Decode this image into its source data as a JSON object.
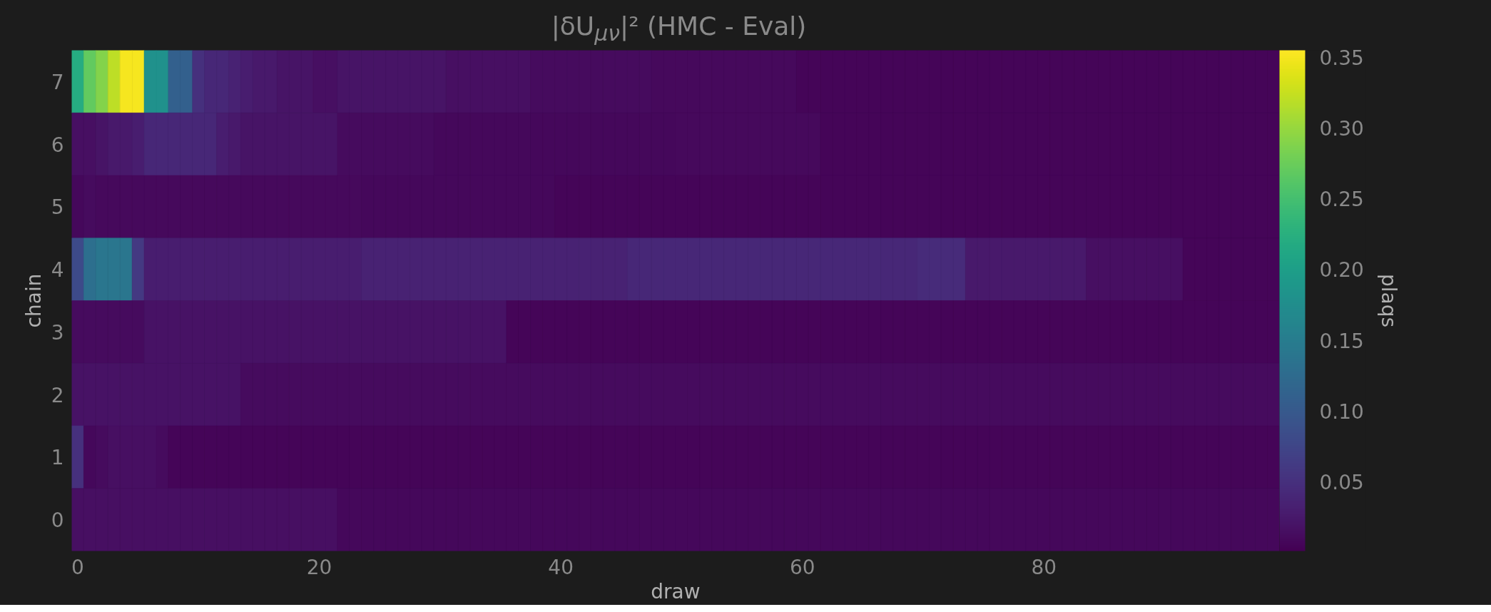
{
  "chart_data": {
    "type": "heatmap",
    "title": "|δU$_{μν}$|² (HMC - Eval)",
    "xlabel": "draw",
    "ylabel": "chain",
    "clabel": "plaqs",
    "categories": [
      "0",
      null,
      null,
      null,
      null,
      null,
      null,
      null,
      null,
      null,
      null,
      null,
      null,
      null,
      null,
      null,
      null,
      null,
      null,
      null,
      "20",
      null,
      null,
      null,
      null,
      null,
      null,
      null,
      null,
      null,
      null,
      null,
      null,
      null,
      null,
      null,
      null,
      null,
      null,
      null,
      "40",
      null,
      null,
      null,
      null,
      null,
      null,
      null,
      null,
      null,
      null,
      null,
      null,
      null,
      null,
      null,
      null,
      null,
      null,
      null,
      "60",
      null,
      null,
      null,
      null,
      null,
      null,
      null,
      null,
      null,
      null,
      null,
      null,
      null,
      null,
      null,
      null,
      null,
      null,
      null,
      "80",
      null,
      null,
      null,
      null,
      null,
      null,
      null,
      null,
      null,
      null,
      null,
      null,
      null,
      null,
      null,
      null,
      null,
      null,
      null
    ],
    "y_categories": [
      "7",
      "6",
      "5",
      "4",
      "3",
      "2",
      "1",
      "0"
    ],
    "cells": [
      [
        0.22,
        0.27,
        0.29,
        0.32,
        0.35,
        0.35,
        0.18,
        0.18,
        0.11,
        0.11,
        0.05,
        0.04,
        0.04,
        0.035,
        0.03,
        0.025,
        0.025,
        0.02,
        0.02,
        0.02,
        0.015,
        0.015,
        0.02,
        0.02,
        0.02,
        0.02,
        0.02,
        0.02,
        0.02,
        0.02,
        0.02,
        0.015,
        0.015,
        0.015,
        0.015,
        0.015,
        0.015,
        0.015,
        0.012,
        0.012,
        0.012,
        0.012,
        0.012,
        0.012,
        0.012,
        0.012,
        0.012,
        0.012,
        0.01,
        0.01,
        0.01,
        0.01,
        0.01,
        0.01,
        0.01,
        0.01,
        0.01,
        0.01,
        0.01,
        0.01,
        0.006,
        0.006,
        0.006,
        0.006,
        0.006,
        0.006,
        0.006,
        0.006,
        0.006,
        0.006,
        0.006,
        0.006,
        0.006,
        0.006,
        0.006,
        0.006,
        0.006,
        0.006,
        0.006,
        0.006,
        0.006,
        0.006,
        0.006,
        0.006,
        0.006,
        0.006,
        0.006,
        0.006,
        0.006,
        0.006,
        0.006,
        0.006,
        0.006,
        0.006,
        0.006,
        0.006,
        0.006,
        0.006,
        0.006,
        0.006
      ],
      [
        0.015,
        0.015,
        0.02,
        0.025,
        0.025,
        0.03,
        0.04,
        0.04,
        0.04,
        0.04,
        0.04,
        0.04,
        0.03,
        0.025,
        0.02,
        0.02,
        0.02,
        0.02,
        0.02,
        0.02,
        0.02,
        0.02,
        0.012,
        0.012,
        0.012,
        0.012,
        0.012,
        0.012,
        0.012,
        0.012,
        0.008,
        0.008,
        0.008,
        0.008,
        0.008,
        0.008,
        0.008,
        0.008,
        0.008,
        0.008,
        0.008,
        0.008,
        0.008,
        0.008,
        0.008,
        0.008,
        0.008,
        0.008,
        0.008,
        0.008,
        0.01,
        0.01,
        0.01,
        0.01,
        0.01,
        0.01,
        0.01,
        0.01,
        0.01,
        0.01,
        0.01,
        0.01,
        0.006,
        0.006,
        0.006,
        0.006,
        0.006,
        0.006,
        0.006,
        0.006,
        0.006,
        0.006,
        0.006,
        0.006,
        0.006,
        0.006,
        0.006,
        0.006,
        0.006,
        0.006,
        0.006,
        0.006,
        0.006,
        0.006,
        0.006,
        0.006,
        0.006,
        0.006,
        0.006,
        0.006,
        0.006,
        0.006,
        0.006,
        0.006,
        0.006,
        0.006,
        0.006,
        0.006,
        0.006,
        0.006
      ],
      [
        0.008,
        0.012,
        0.01,
        0.01,
        0.01,
        0.01,
        0.01,
        0.01,
        0.01,
        0.01,
        0.01,
        0.01,
        0.01,
        0.01,
        0.01,
        0.01,
        0.01,
        0.01,
        0.01,
        0.01,
        0.01,
        0.01,
        0.01,
        0.01,
        0.008,
        0.008,
        0.008,
        0.008,
        0.008,
        0.008,
        0.008,
        0.008,
        0.008,
        0.008,
        0.008,
        0.008,
        0.008,
        0.008,
        0.008,
        0.008,
        0.006,
        0.006,
        0.006,
        0.006,
        0.006,
        0.006,
        0.006,
        0.006,
        0.006,
        0.006,
        0.006,
        0.006,
        0.006,
        0.006,
        0.006,
        0.006,
        0.006,
        0.006,
        0.006,
        0.006,
        0.006,
        0.006,
        0.006,
        0.006,
        0.006,
        0.006,
        0.006,
        0.006,
        0.006,
        0.006,
        0.006,
        0.006,
        0.006,
        0.006,
        0.006,
        0.006,
        0.006,
        0.006,
        0.006,
        0.006,
        0.006,
        0.006,
        0.006,
        0.006,
        0.006,
        0.006,
        0.006,
        0.006,
        0.006,
        0.006,
        0.006,
        0.006,
        0.006,
        0.006,
        0.006,
        0.006,
        0.006,
        0.006,
        0.006,
        0.006
      ],
      [
        0.08,
        0.13,
        0.14,
        0.14,
        0.14,
        0.06,
        0.03,
        0.03,
        0.03,
        0.03,
        0.03,
        0.03,
        0.03,
        0.03,
        0.03,
        0.03,
        0.03,
        0.03,
        0.03,
        0.03,
        0.03,
        0.03,
        0.03,
        0.03,
        0.035,
        0.035,
        0.035,
        0.035,
        0.035,
        0.035,
        0.035,
        0.035,
        0.035,
        0.035,
        0.035,
        0.035,
        0.035,
        0.035,
        0.035,
        0.035,
        0.035,
        0.035,
        0.035,
        0.035,
        0.035,
        0.035,
        0.04,
        0.04,
        0.04,
        0.04,
        0.04,
        0.04,
        0.04,
        0.04,
        0.04,
        0.04,
        0.04,
        0.04,
        0.04,
        0.04,
        0.04,
        0.04,
        0.04,
        0.04,
        0.04,
        0.04,
        0.04,
        0.04,
        0.04,
        0.04,
        0.045,
        0.045,
        0.045,
        0.045,
        0.025,
        0.025,
        0.025,
        0.025,
        0.025,
        0.025,
        0.025,
        0.025,
        0.025,
        0.025,
        0.015,
        0.015,
        0.015,
        0.015,
        0.015,
        0.015,
        0.015,
        0.015,
        0.006,
        0.006,
        0.006,
        0.006,
        0.006,
        0.006,
        0.006,
        0.006
      ],
      [
        0.012,
        0.012,
        0.012,
        0.012,
        0.012,
        0.012,
        0.018,
        0.018,
        0.018,
        0.018,
        0.018,
        0.018,
        0.018,
        0.018,
        0.018,
        0.018,
        0.018,
        0.018,
        0.018,
        0.018,
        0.018,
        0.018,
        0.018,
        0.018,
        0.018,
        0.018,
        0.018,
        0.018,
        0.018,
        0.018,
        0.018,
        0.018,
        0.018,
        0.018,
        0.018,
        0.018,
        0.006,
        0.006,
        0.006,
        0.006,
        0.006,
        0.006,
        0.006,
        0.006,
        0.006,
        0.006,
        0.006,
        0.006,
        0.006,
        0.006,
        0.006,
        0.006,
        0.006,
        0.006,
        0.006,
        0.006,
        0.006,
        0.006,
        0.006,
        0.006,
        0.006,
        0.006,
        0.006,
        0.006,
        0.006,
        0.006,
        0.006,
        0.006,
        0.006,
        0.006,
        0.006,
        0.006,
        0.006,
        0.006,
        0.006,
        0.006,
        0.006,
        0.006,
        0.006,
        0.006,
        0.006,
        0.006,
        0.006,
        0.006,
        0.006,
        0.006,
        0.006,
        0.006,
        0.006,
        0.006,
        0.006,
        0.006,
        0.006,
        0.006,
        0.006,
        0.006,
        0.006,
        0.006,
        0.006,
        0.006
      ],
      [
        0.018,
        0.018,
        0.018,
        0.018,
        0.018,
        0.018,
        0.018,
        0.018,
        0.018,
        0.018,
        0.018,
        0.018,
        0.018,
        0.018,
        0.012,
        0.012,
        0.012,
        0.012,
        0.012,
        0.012,
        0.012,
        0.012,
        0.012,
        0.012,
        0.012,
        0.012,
        0.012,
        0.012,
        0.012,
        0.012,
        0.012,
        0.012,
        0.012,
        0.012,
        0.012,
        0.012,
        0.012,
        0.012,
        0.012,
        0.012,
        0.012,
        0.012,
        0.012,
        0.012,
        0.012,
        0.012,
        0.012,
        0.012,
        0.012,
        0.012,
        0.012,
        0.012,
        0.012,
        0.012,
        0.012,
        0.012,
        0.012,
        0.012,
        0.012,
        0.012,
        0.012,
        0.012,
        0.012,
        0.012,
        0.012,
        0.012,
        0.012,
        0.012,
        0.012,
        0.012,
        0.012,
        0.012,
        0.012,
        0.012,
        0.012,
        0.012,
        0.012,
        0.012,
        0.012,
        0.012,
        0.012,
        0.012,
        0.012,
        0.012,
        0.012,
        0.012,
        0.012,
        0.012,
        0.012,
        0.012,
        0.012,
        0.012,
        0.012,
        0.012,
        0.012,
        0.012,
        0.012,
        0.012,
        0.012,
        0.012
      ],
      [
        0.05,
        0.008,
        0.012,
        0.015,
        0.015,
        0.015,
        0.015,
        0.012,
        0.006,
        0.006,
        0.006,
        0.006,
        0.006,
        0.006,
        0.006,
        0.006,
        0.006,
        0.006,
        0.006,
        0.006,
        0.006,
        0.006,
        0.006,
        0.006,
        0.006,
        0.006,
        0.006,
        0.006,
        0.006,
        0.006,
        0.006,
        0.006,
        0.006,
        0.006,
        0.006,
        0.006,
        0.006,
        0.006,
        0.006,
        0.006,
        0.006,
        0.006,
        0.006,
        0.006,
        0.006,
        0.006,
        0.006,
        0.006,
        0.006,
        0.006,
        0.006,
        0.006,
        0.006,
        0.006,
        0.006,
        0.006,
        0.006,
        0.006,
        0.006,
        0.006,
        0.006,
        0.006,
        0.006,
        0.006,
        0.006,
        0.006,
        0.006,
        0.006,
        0.006,
        0.006,
        0.006,
        0.006,
        0.006,
        0.006,
        0.006,
        0.006,
        0.006,
        0.006,
        0.006,
        0.006,
        0.006,
        0.006,
        0.006,
        0.006,
        0.006,
        0.006,
        0.006,
        0.006,
        0.006,
        0.006,
        0.006,
        0.006,
        0.006,
        0.006,
        0.006,
        0.006,
        0.006,
        0.006,
        0.006,
        0.006
      ],
      [
        0.015,
        0.015,
        0.015,
        0.015,
        0.015,
        0.015,
        0.015,
        0.015,
        0.015,
        0.015,
        0.015,
        0.015,
        0.015,
        0.015,
        0.015,
        0.015,
        0.015,
        0.015,
        0.015,
        0.015,
        0.015,
        0.015,
        0.008,
        0.008,
        0.008,
        0.008,
        0.008,
        0.008,
        0.008,
        0.008,
        0.008,
        0.008,
        0.008,
        0.008,
        0.008,
        0.008,
        0.008,
        0.008,
        0.008,
        0.008,
        0.008,
        0.008,
        0.008,
        0.008,
        0.008,
        0.008,
        0.008,
        0.008,
        0.008,
        0.008,
        0.008,
        0.008,
        0.008,
        0.008,
        0.008,
        0.008,
        0.008,
        0.008,
        0.008,
        0.008,
        0.008,
        0.008,
        0.008,
        0.008,
        0.008,
        0.008,
        0.008,
        0.008,
        0.008,
        0.008,
        0.008,
        0.008,
        0.008,
        0.008,
        0.008,
        0.008,
        0.008,
        0.008,
        0.008,
        0.008,
        0.008,
        0.008,
        0.008,
        0.008,
        0.008,
        0.008,
        0.008,
        0.008,
        0.008,
        0.008,
        0.008,
        0.008,
        0.008,
        0.008,
        0.008,
        0.008,
        0.008,
        0.008,
        0.008,
        0.008
      ]
    ],
    "clim": [
      0.001,
      0.355
    ],
    "cticks": [
      0.05,
      {
        "value": 0.1,
        "label": "0.10"
      },
      0.15,
      {
        "value": 0.2,
        "label": "0.20"
      },
      0.25,
      {
        "value": 0.3,
        "label": "0.30"
      },
      0.35
    ],
    "grid": false
  }
}
